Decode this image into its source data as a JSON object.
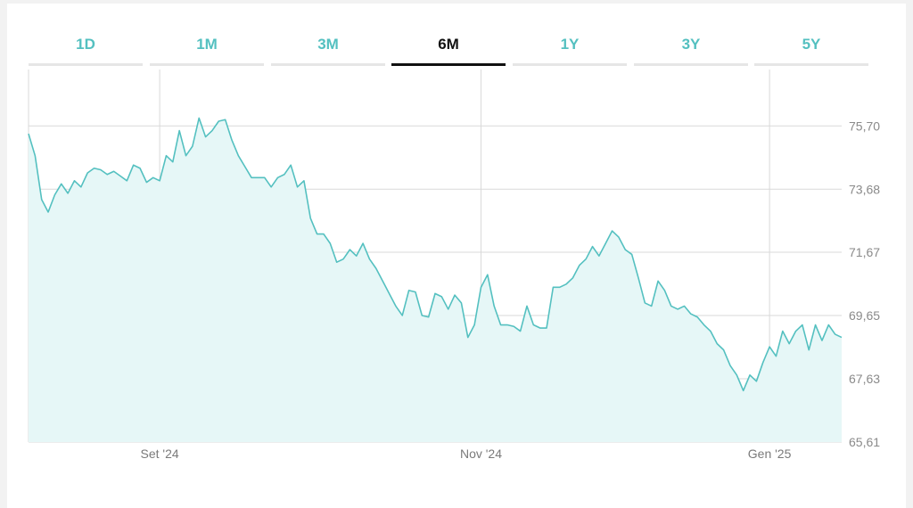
{
  "tabs": [
    {
      "label": "1D",
      "active": false
    },
    {
      "label": "1M",
      "active": false
    },
    {
      "label": "3M",
      "active": false
    },
    {
      "label": "6M",
      "active": true
    },
    {
      "label": "1Y",
      "active": false
    },
    {
      "label": "3Y",
      "active": false
    },
    {
      "label": "5Y",
      "active": false
    }
  ],
  "colors": {
    "accent": "#54c0c0",
    "fill": "#e6f7f7",
    "grid": "#d9d9d9",
    "active_tab": "#111111"
  },
  "chart_data": {
    "type": "area",
    "title": "",
    "xlabel": "",
    "ylabel": "",
    "ylim": [
      65.61,
      77.5
    ],
    "y_ticks": [
      "75,70",
      "73,68",
      "71,67",
      "69,65",
      "67,63",
      "65,61"
    ],
    "y_tick_values": [
      75.7,
      73.68,
      71.67,
      69.65,
      67.63,
      65.61
    ],
    "x_ticks": [
      "Set '24",
      "Nov '24",
      "Gen '25"
    ],
    "x_tick_index": [
      20,
      69,
      113
    ],
    "grid": true,
    "series": [
      {
        "values": [
          75.45,
          74.75,
          73.35,
          72.95,
          73.5,
          73.85,
          73.55,
          73.95,
          73.75,
          74.2,
          74.35,
          74.3,
          74.15,
          74.25,
          74.1,
          73.95,
          74.45,
          74.35,
          73.9,
          74.05,
          73.95,
          74.75,
          74.55,
          75.55,
          74.75,
          75.05,
          75.95,
          75.35,
          75.55,
          75.85,
          75.9,
          75.25,
          74.75,
          74.4,
          74.05,
          74.05,
          74.05,
          73.75,
          74.05,
          74.15,
          74.45,
          73.75,
          73.95,
          72.75,
          72.25,
          72.25,
          71.95,
          71.35,
          71.45,
          71.75,
          71.55,
          71.95,
          71.45,
          71.15,
          70.75,
          70.35,
          69.95,
          69.65,
          70.45,
          70.4,
          69.65,
          69.6,
          70.35,
          70.25,
          69.85,
          70.3,
          70.05,
          68.95,
          69.35,
          70.55,
          70.95,
          69.95,
          69.35,
          69.35,
          69.3,
          69.15,
          69.95,
          69.35,
          69.25,
          69.25,
          70.55,
          70.55,
          70.65,
          70.85,
          71.25,
          71.45,
          71.85,
          71.55,
          71.95,
          72.35,
          72.15,
          71.75,
          71.6,
          70.85,
          70.05,
          69.95,
          70.75,
          70.45,
          69.95,
          69.85,
          69.95,
          69.7,
          69.6,
          69.35,
          69.15,
          68.75,
          68.55,
          68.05,
          67.75,
          67.25,
          67.75,
          67.55,
          68.15,
          68.65,
          68.35,
          69.15,
          68.75,
          69.15,
          69.35,
          68.55,
          69.35,
          68.85,
          69.35,
          69.05,
          68.95
        ]
      }
    ]
  }
}
